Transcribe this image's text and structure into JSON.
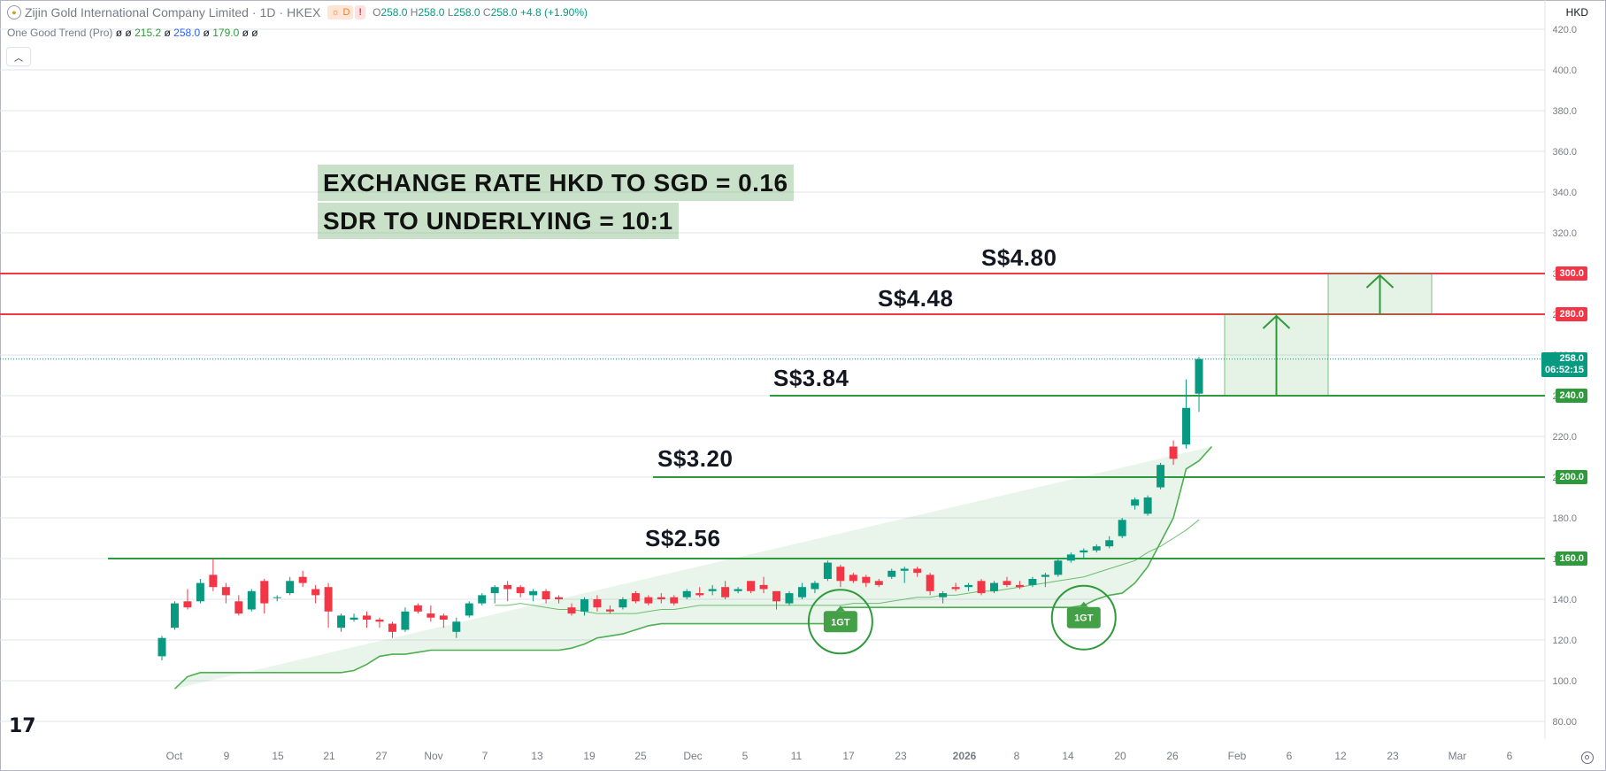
{
  "legend": {
    "symbol_logo": "gold-coin-icon",
    "name": "Zijin Gold International Company Limited",
    "interval": "1D",
    "exchange": "HKEX",
    "badge_d": "D",
    "badge_alert": "!",
    "o_key": "O",
    "o_val": "258.0",
    "h_key": "H",
    "h_val": "258.0",
    "l_key": "L",
    "l_val": "258.0",
    "c_key": "C",
    "c_val": "258.0",
    "change": "+4.8 (+1.90%)"
  },
  "indicator": {
    "name": "One Good Trend (Pro)",
    "v0a": "ø",
    "v0b": "ø",
    "v1": "215.2",
    "v1b": "ø",
    "v2": "258.0",
    "v2b": "ø",
    "v3": "179.0",
    "v3b": "ø",
    "v3c": "ø"
  },
  "currency": "HKD",
  "notes": {
    "line1": "EXCHANGE RATE HKD TO SGD = 0.16",
    "line2": "SDR TO UNDERLYING = 10:1"
  },
  "levels": [
    {
      "label": "S$4.80",
      "price": 300,
      "tag": "300.0",
      "color": "#f23645"
    },
    {
      "label": "S$4.48",
      "price": 280,
      "tag": "280.0",
      "color": "#f23645"
    },
    {
      "label": "S$3.84",
      "price": 240,
      "tag": "240.0",
      "color": "#2e9a3b"
    },
    {
      "label": "S$3.20",
      "price": 200,
      "tag": "200.0",
      "color": "#2e9a3b"
    },
    {
      "label": "S$2.56",
      "price": 160,
      "tag": "160.0",
      "color": "#2e9a3b"
    }
  ],
  "current": {
    "price_tag": "258.0",
    "countdown": "06:52:15"
  },
  "signals": [
    {
      "label": "1GT"
    },
    {
      "label": "1GT"
    }
  ],
  "colors": {
    "up": "#089981",
    "down": "#f23645",
    "trend": "#4caf50",
    "resistance": "#f23645",
    "support": "#2e9a3b"
  },
  "chart_data": {
    "type": "candlestick",
    "title": "Zijin Gold International Company Limited · 1D · HKEX",
    "ylim": [
      75,
      430
    ],
    "y_ticks": [
      "420.0",
      "400.0",
      "380.0",
      "360.0",
      "340.0",
      "320.0",
      "300.0",
      "280.0",
      "260.0",
      "240.0",
      "220.0",
      "200.0",
      "180.0",
      "160.0",
      "140.0",
      "120.0",
      "100.0",
      "80.00"
    ],
    "x_ticks": [
      "Oct",
      "9",
      "15",
      "21",
      "27",
      "Nov",
      "7",
      "13",
      "19",
      "25",
      "Dec",
      "5",
      "11",
      "17",
      "23",
      "2026",
      "8",
      "14",
      "20",
      "26",
      "Feb",
      "6",
      "12",
      "23",
      "Mar",
      "6"
    ],
    "candles": [
      {
        "o": 112,
        "h": 122,
        "l": 110,
        "c": 121
      },
      {
        "o": 126,
        "h": 139,
        "l": 125,
        "c": 138
      },
      {
        "o": 139,
        "h": 145,
        "l": 135,
        "c": 136
      },
      {
        "o": 139,
        "h": 150,
        "l": 138,
        "c": 148
      },
      {
        "o": 152,
        "h": 160,
        "l": 144,
        "c": 146
      },
      {
        "o": 146,
        "h": 148,
        "l": 138,
        "c": 142
      },
      {
        "o": 139,
        "h": 142,
        "l": 132,
        "c": 133
      },
      {
        "o": 135,
        "h": 145,
        "l": 134,
        "c": 144
      },
      {
        "o": 149,
        "h": 150,
        "l": 133,
        "c": 138
      },
      {
        "o": 141,
        "h": 142,
        "l": 139,
        "c": 141
      },
      {
        "o": 143,
        "h": 151,
        "l": 142,
        "c": 149
      },
      {
        "o": 151,
        "h": 154,
        "l": 146,
        "c": 148
      },
      {
        "o": 145,
        "h": 147,
        "l": 138,
        "c": 142
      },
      {
        "o": 146,
        "h": 148,
        "l": 126,
        "c": 134
      },
      {
        "o": 126,
        "h": 133,
        "l": 124,
        "c": 132
      },
      {
        "o": 130,
        "h": 133,
        "l": 129,
        "c": 131
      },
      {
        "o": 132,
        "h": 134,
        "l": 126,
        "c": 130
      },
      {
        "o": 130,
        "h": 131,
        "l": 126,
        "c": 129
      },
      {
        "o": 128,
        "h": 129,
        "l": 121,
        "c": 124
      },
      {
        "o": 125,
        "h": 136,
        "l": 124,
        "c": 134
      },
      {
        "o": 137,
        "h": 138,
        "l": 133,
        "c": 134
      },
      {
        "o": 133,
        "h": 137,
        "l": 129,
        "c": 131
      },
      {
        "o": 132,
        "h": 133,
        "l": 126,
        "c": 130
      },
      {
        "o": 124,
        "h": 131,
        "l": 121,
        "c": 129
      },
      {
        "o": 132,
        "h": 139,
        "l": 131,
        "c": 138
      },
      {
        "o": 138,
        "h": 143,
        "l": 137,
        "c": 142
      },
      {
        "o": 143,
        "h": 147,
        "l": 138,
        "c": 146
      },
      {
        "o": 147,
        "h": 149,
        "l": 139,
        "c": 145
      },
      {
        "o": 146,
        "h": 147,
        "l": 141,
        "c": 143
      },
      {
        "o": 142,
        "h": 145,
        "l": 139,
        "c": 144
      },
      {
        "o": 144,
        "h": 145,
        "l": 138,
        "c": 140
      },
      {
        "o": 141,
        "h": 142,
        "l": 138,
        "c": 140
      },
      {
        "o": 136,
        "h": 138,
        "l": 132,
        "c": 133
      },
      {
        "o": 134,
        "h": 141,
        "l": 132,
        "c": 140
      },
      {
        "o": 140,
        "h": 142,
        "l": 134,
        "c": 136
      },
      {
        "o": 135,
        "h": 137,
        "l": 133,
        "c": 134
      },
      {
        "o": 136,
        "h": 141,
        "l": 135,
        "c": 140
      },
      {
        "o": 143,
        "h": 144,
        "l": 138,
        "c": 139
      },
      {
        "o": 141,
        "h": 142,
        "l": 137,
        "c": 138
      },
      {
        "o": 141,
        "h": 143,
        "l": 138,
        "c": 140
      },
      {
        "o": 141,
        "h": 142,
        "l": 137,
        "c": 138
      },
      {
        "o": 141,
        "h": 145,
        "l": 140,
        "c": 144
      },
      {
        "o": 143,
        "h": 146,
        "l": 141,
        "c": 142
      },
      {
        "o": 144,
        "h": 147,
        "l": 142,
        "c": 145
      },
      {
        "o": 146,
        "h": 149,
        "l": 140,
        "c": 141
      },
      {
        "o": 144,
        "h": 146,
        "l": 143,
        "c": 145
      },
      {
        "o": 149,
        "h": 149,
        "l": 143,
        "c": 144
      },
      {
        "o": 147,
        "h": 151,
        "l": 143,
        "c": 145
      },
      {
        "o": 144,
        "h": 144,
        "l": 135,
        "c": 139
      },
      {
        "o": 138,
        "h": 144,
        "l": 137,
        "c": 143
      },
      {
        "o": 141,
        "h": 148,
        "l": 140,
        "c": 146
      },
      {
        "o": 145,
        "h": 149,
        "l": 143,
        "c": 148
      },
      {
        "o": 150,
        "h": 159,
        "l": 149,
        "c": 158
      },
      {
        "o": 156,
        "h": 157,
        "l": 146,
        "c": 149
      },
      {
        "o": 152,
        "h": 153,
        "l": 148,
        "c": 149
      },
      {
        "o": 151,
        "h": 152,
        "l": 146,
        "c": 148
      },
      {
        "o": 149,
        "h": 150,
        "l": 146,
        "c": 147
      },
      {
        "o": 151,
        "h": 155,
        "l": 150,
        "c": 154
      },
      {
        "o": 154,
        "h": 156,
        "l": 148,
        "c": 155
      },
      {
        "o": 155,
        "h": 156,
        "l": 151,
        "c": 153
      },
      {
        "o": 152,
        "h": 153,
        "l": 142,
        "c": 144
      },
      {
        "o": 141,
        "h": 144,
        "l": 138,
        "c": 143
      },
      {
        "o": 146,
        "h": 148,
        "l": 144,
        "c": 145
      },
      {
        "o": 146,
        "h": 148,
        "l": 144,
        "c": 147
      },
      {
        "o": 149,
        "h": 150,
        "l": 142,
        "c": 143
      },
      {
        "o": 144,
        "h": 149,
        "l": 143,
        "c": 148
      },
      {
        "o": 149,
        "h": 151,
        "l": 146,
        "c": 147
      },
      {
        "o": 147,
        "h": 149,
        "l": 145,
        "c": 146
      },
      {
        "o": 147,
        "h": 151,
        "l": 146,
        "c": 150
      },
      {
        "o": 151,
        "h": 153,
        "l": 146,
        "c": 152
      },
      {
        "o": 152,
        "h": 160,
        "l": 151,
        "c": 159
      },
      {
        "o": 159,
        "h": 163,
        "l": 158,
        "c": 162
      },
      {
        "o": 163,
        "h": 165,
        "l": 160,
        "c": 164
      },
      {
        "o": 164,
        "h": 167,
        "l": 163,
        "c": 166
      },
      {
        "o": 166,
        "h": 171,
        "l": 165,
        "c": 169
      },
      {
        "o": 171,
        "h": 180,
        "l": 170,
        "c": 179
      },
      {
        "o": 186,
        "h": 190,
        "l": 184,
        "c": 189
      },
      {
        "o": 182,
        "h": 191,
        "l": 181,
        "c": 190
      },
      {
        "o": 195,
        "h": 207,
        "l": 194,
        "c": 206
      },
      {
        "o": 215,
        "h": 218,
        "l": 206,
        "c": 209
      },
      {
        "o": 216,
        "h": 248,
        "l": 214,
        "c": 234
      },
      {
        "o": 241,
        "h": 259,
        "l": 232,
        "c": 258
      }
    ],
    "trend_lower": [
      96,
      102,
      104,
      104,
      104,
      104,
      104,
      104,
      104,
      104,
      104,
      104,
      104,
      104,
      105,
      108,
      112,
      113,
      113,
      114,
      115,
      115,
      115,
      115,
      115,
      115,
      115,
      115,
      115,
      115,
      115,
      116,
      118,
      121,
      122,
      123,
      125,
      127,
      128,
      128,
      128,
      128,
      128,
      128,
      128,
      128,
      128,
      128,
      128,
      128,
      128,
      128,
      136,
      136,
      136,
      136,
      136,
      136,
      136,
      136,
      136,
      136,
      136,
      136,
      136,
      136,
      136,
      136,
      136,
      136,
      136,
      137,
      140,
      142,
      143,
      148,
      156,
      168,
      180,
      204,
      208,
      215
    ],
    "trend_baseline": [
      137,
      137,
      138,
      137,
      136,
      135,
      135,
      134,
      133,
      133,
      133,
      133,
      134,
      135,
      135,
      136,
      137,
      137,
      137,
      137,
      137,
      137,
      137,
      137,
      137,
      137,
      137,
      137,
      138,
      138,
      138,
      139,
      140,
      141,
      141,
      142,
      142,
      143,
      144,
      144,
      145,
      146,
      147,
      148,
      149,
      150,
      151,
      153,
      155,
      157,
      159,
      163,
      166,
      170,
      174,
      179
    ]
  }
}
